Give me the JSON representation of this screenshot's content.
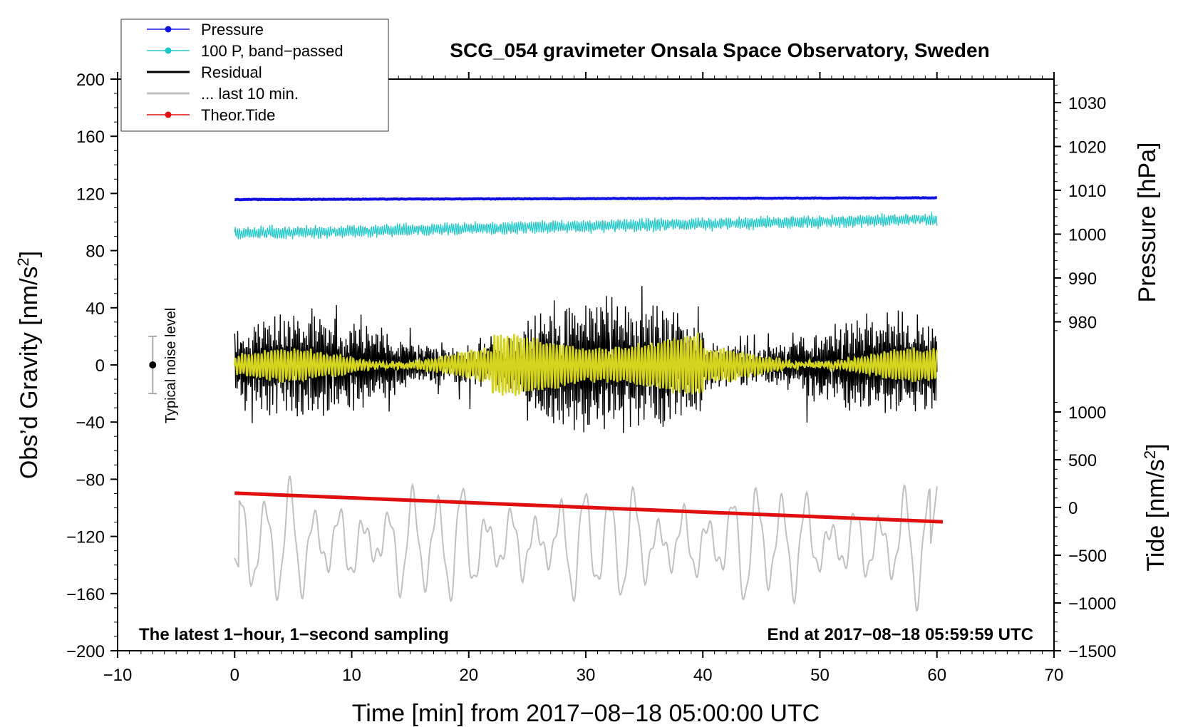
{
  "chart_data": {
    "type": "line",
    "title": "SCG_054 gravimeter Onsala Space Observatory, Sweden",
    "xlabel": "Time [min] from 2017−08−18 05:00:00 UTC",
    "ylabel_left": "Obs’d Gravity [nm/s",
    "ylabel_left_sup": "2",
    "ylabel_left_end": "]",
    "ylabel_right_top": "Pressure [hPa]",
    "ylabel_right_bottom": "Tide [nm/s",
    "ylabel_right_bottom_sup": "2",
    "ylabel_right_bottom_end": "]",
    "xlim": [
      -10,
      70
    ],
    "ylim_left": [
      -200,
      200
    ],
    "x_ticks": [
      "−10",
      "0",
      "10",
      "20",
      "30",
      "40",
      "50",
      "60",
      "70"
    ],
    "y_ticks_left": [
      "200",
      "160",
      "120",
      "80",
      "40",
      "0",
      "−40",
      "−80",
      "−120",
      "−160",
      "−200"
    ],
    "y_ticks_pressure": [
      "1030",
      "1020",
      "1010",
      "1000",
      "990",
      "980"
    ],
    "y_ticks_tide": [
      "1000",
      "500",
      "0",
      "−500",
      "−1000",
      "−1500"
    ],
    "legend": [
      {
        "label": "Pressure",
        "color": "#1010e0",
        "marker": true
      },
      {
        "label": "100 P, band−passed",
        "color": "#20c8c8",
        "marker": true
      },
      {
        "label": "Residual",
        "color": "#000000",
        "marker": false
      },
      {
        "label": "... last 10 min.",
        "color": "#c0c0c0",
        "marker": false
      },
      {
        "label": "Theor.Tide",
        "color": "#e01010",
        "marker": true
      }
    ],
    "legend_position": "top-left",
    "annotations": {
      "bottom_left": "The latest 1−hour, 1−second sampling",
      "bottom_right": "End at 2017−08−18 05:59:59 UTC",
      "noise_label": "Typical noise level"
    },
    "noise_bar": {
      "x": -7,
      "center": 0,
      "half_range": 20
    },
    "series": [
      {
        "name": "Pressure",
        "axis": "pressure",
        "color": "#1010e0",
        "x_range": [
          0,
          60
        ],
        "start": 1007.9,
        "end": 1008.3,
        "noise": 0.12
      },
      {
        "name": "100 P, band−passed",
        "axis": "left",
        "color": "#20c8c8",
        "x_range": [
          0,
          60
        ],
        "start": 92,
        "end": 102,
        "noise": 4
      },
      {
        "name": "Residual",
        "axis": "left",
        "color": "#000000",
        "x_range": [
          0,
          60
        ],
        "center": 0,
        "typical_range": [
          -40,
          40
        ],
        "extremes": [
          -60,
          67
        ]
      },
      {
        "name": "Residual filtered",
        "axis": "left",
        "color": "#d4d41e",
        "x_range": [
          0,
          60
        ],
        "center": 0,
        "typical_range": [
          -15,
          15
        ],
        "extremes": [
          -30,
          30
        ]
      },
      {
        "name": "... last 10 min.",
        "axis": "left",
        "color": "#c0c0c0",
        "x_range": [
          0,
          60
        ],
        "center": -125,
        "typical_range": [
          -160,
          -90
        ]
      },
      {
        "name": "Theor.Tide",
        "axis": "tide",
        "color": "#e01010",
        "x_range": [
          0,
          60.5
        ],
        "start": 150,
        "end": -150
      }
    ]
  }
}
